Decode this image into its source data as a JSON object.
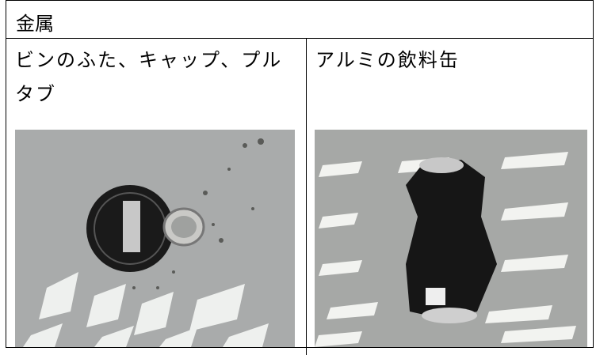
{
  "table": {
    "header": "金属",
    "cells": [
      {
        "label": "ビンのふた、キャップ、プルタブ"
      },
      {
        "label": "アルミの飲料缶"
      }
    ]
  }
}
